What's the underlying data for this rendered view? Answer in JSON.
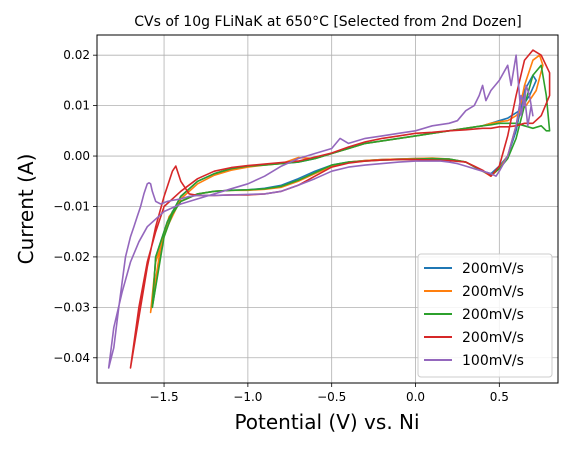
{
  "chart_data": {
    "type": "line",
    "title": "CVs of 10g FLiNaK at 650°C [Selected from 2nd Dozen]",
    "xlabel": "Potential (V) vs. Ni",
    "ylabel": "Current (A)",
    "xlim": [
      -1.9,
      0.85
    ],
    "ylim": [
      -0.045,
      0.024
    ],
    "xticks": [
      -1.5,
      -1.0,
      -0.5,
      0.0,
      0.5
    ],
    "xtick_labels": [
      "−1.5",
      "−1.0",
      "−0.5",
      "0.0",
      "0.5"
    ],
    "yticks": [
      -0.04,
      -0.03,
      -0.02,
      -0.01,
      0.0,
      0.01,
      0.02
    ],
    "ytick_labels": [
      "−0.04",
      "−0.03",
      "−0.02",
      "−0.01",
      "0.00",
      "0.01",
      "0.02"
    ],
    "grid": true,
    "legend_position": "lower-right",
    "series": [
      {
        "name": "200mV/s",
        "color": "#1f77b4",
        "x": [
          -1.57,
          -1.5,
          -1.45,
          -1.4,
          -1.3,
          -1.2,
          -1.1,
          -1.0,
          -0.9,
          -0.8,
          -0.7,
          -0.6,
          -0.5,
          -0.4,
          -0.3,
          -0.2,
          -0.1,
          0.0,
          0.1,
          0.2,
          0.3,
          0.4,
          0.45,
          0.5,
          0.55,
          0.6,
          0.65,
          0.7,
          0.72,
          0.68,
          0.62,
          0.55,
          0.5,
          0.45,
          0.4,
          0.3,
          0.2,
          0.1,
          0.0,
          -0.1,
          -0.2,
          -0.3,
          -0.4,
          -0.5,
          -0.6,
          -0.7,
          -0.8,
          -0.9,
          -1.0,
          -1.1,
          -1.2,
          -1.3,
          -1.4,
          -1.48,
          -1.55,
          -1.57
        ],
        "y": [
          -0.03,
          -0.015,
          -0.011,
          -0.009,
          -0.0075,
          -0.007,
          -0.0068,
          -0.0067,
          -0.0064,
          -0.0058,
          -0.0045,
          -0.003,
          -0.0018,
          -0.0012,
          -0.0009,
          -0.0007,
          -0.0006,
          -0.0005,
          -0.0005,
          -0.0006,
          -0.0012,
          -0.003,
          -0.0035,
          -0.002,
          0.0,
          0.005,
          0.013,
          0.016,
          0.015,
          0.012,
          0.009,
          0.0075,
          0.007,
          0.0065,
          0.006,
          0.0055,
          0.005,
          0.0045,
          0.004,
          0.0035,
          0.003,
          0.0025,
          0.0015,
          0.0005,
          -0.0005,
          -0.0012,
          -0.0015,
          -0.0017,
          -0.002,
          -0.0025,
          -0.0035,
          -0.005,
          -0.008,
          -0.013,
          -0.02,
          -0.03
        ]
      },
      {
        "name": "200mV/s",
        "color": "#ff7f0e",
        "x": [
          -1.58,
          -1.52,
          -1.47,
          -1.4,
          -1.3,
          -1.2,
          -1.1,
          -1.0,
          -0.9,
          -0.8,
          -0.7,
          -0.6,
          -0.5,
          -0.4,
          -0.3,
          -0.2,
          -0.1,
          0.0,
          0.1,
          0.2,
          0.3,
          0.4,
          0.45,
          0.5,
          0.55,
          0.6,
          0.65,
          0.7,
          0.74,
          0.76,
          0.72,
          0.66,
          0.6,
          0.55,
          0.5,
          0.45,
          0.4,
          0.3,
          0.2,
          0.1,
          0.0,
          -0.1,
          -0.2,
          -0.3,
          -0.4,
          -0.5,
          -0.6,
          -0.7,
          -0.8,
          -0.9,
          -1.0,
          -1.1,
          -1.2,
          -1.3,
          -1.4,
          -1.48,
          -1.55,
          -1.58
        ],
        "y": [
          -0.031,
          -0.018,
          -0.012,
          -0.009,
          -0.0075,
          -0.007,
          -0.0068,
          -0.0068,
          -0.0066,
          -0.0062,
          -0.005,
          -0.0035,
          -0.002,
          -0.0012,
          -0.0009,
          -0.0007,
          -0.0006,
          -0.0005,
          -0.0004,
          -0.0006,
          -0.0012,
          -0.003,
          -0.004,
          -0.0025,
          0.0,
          0.006,
          0.014,
          0.019,
          0.02,
          0.018,
          0.013,
          0.01,
          0.008,
          0.007,
          0.0068,
          0.0065,
          0.006,
          0.0055,
          0.005,
          0.0045,
          0.004,
          0.0035,
          0.003,
          0.0025,
          0.0015,
          0.0005,
          -0.0005,
          -0.0003,
          -0.0015,
          -0.0018,
          -0.0022,
          -0.0028,
          -0.0038,
          -0.0055,
          -0.0085,
          -0.014,
          -0.021,
          -0.031
        ]
      },
      {
        "name": "200mV/s",
        "color": "#2ca02c",
        "x": [
          -1.57,
          -1.5,
          -1.45,
          -1.4,
          -1.3,
          -1.2,
          -1.1,
          -1.0,
          -0.9,
          -0.8,
          -0.7,
          -0.6,
          -0.5,
          -0.4,
          -0.3,
          -0.2,
          -0.1,
          0.0,
          0.1,
          0.2,
          0.3,
          0.4,
          0.45,
          0.5,
          0.55,
          0.6,
          0.65,
          0.7,
          0.75,
          0.78,
          0.8,
          0.78,
          0.75,
          0.7,
          0.65,
          0.6,
          0.55,
          0.5,
          0.45,
          0.4,
          0.3,
          0.2,
          0.1,
          0.0,
          -0.1,
          -0.2,
          -0.3,
          -0.4,
          -0.5,
          -0.6,
          -0.7,
          -0.8,
          -0.9,
          -1.0,
          -1.1,
          -1.2,
          -1.3,
          -1.4,
          -1.48,
          -1.55,
          -1.57
        ],
        "y": [
          -0.03,
          -0.016,
          -0.0115,
          -0.009,
          -0.0075,
          -0.007,
          -0.0068,
          -0.0067,
          -0.0065,
          -0.006,
          -0.0048,
          -0.0033,
          -0.0018,
          -0.0012,
          -0.001,
          -0.0008,
          -0.0007,
          -0.0006,
          -0.0005,
          -0.0006,
          -0.0012,
          -0.003,
          -0.0038,
          -0.0025,
          -0.0005,
          0.0035,
          0.01,
          0.016,
          0.018,
          0.012,
          0.005,
          0.005,
          0.006,
          0.0055,
          0.006,
          0.0065,
          0.0065,
          0.0065,
          0.0062,
          0.006,
          0.0055,
          0.005,
          0.0045,
          0.004,
          0.0035,
          0.003,
          0.0025,
          0.0015,
          0.0005,
          -0.0005,
          -0.0012,
          -0.0015,
          -0.0018,
          -0.002,
          -0.0025,
          -0.0035,
          -0.005,
          -0.008,
          -0.013,
          -0.02,
          -0.03
        ]
      },
      {
        "name": "200mV/s",
        "color": "#d62728",
        "x": [
          -1.7,
          -1.65,
          -1.6,
          -1.55,
          -1.5,
          -1.45,
          -1.43,
          -1.4,
          -1.35,
          -1.3,
          -1.2,
          -1.1,
          -1.0,
          -0.9,
          -0.8,
          -0.7,
          -0.6,
          -0.5,
          -0.4,
          -0.3,
          -0.2,
          -0.1,
          0.0,
          0.1,
          0.2,
          0.3,
          0.35,
          0.4,
          0.45,
          0.5,
          0.55,
          0.6,
          0.65,
          0.7,
          0.75,
          0.8,
          0.8,
          0.75,
          0.7,
          0.65,
          0.6,
          0.55,
          0.5,
          0.45,
          0.4,
          0.3,
          0.2,
          0.1,
          0.0,
          -0.1,
          -0.2,
          -0.3,
          -0.4,
          -0.5,
          -0.6,
          -0.7,
          -0.8,
          -0.9,
          -1.0,
          -1.1,
          -1.2,
          -1.3,
          -1.4,
          -1.5,
          -1.55,
          -1.6,
          -1.65,
          -1.7
        ],
        "y": [
          -0.042,
          -0.032,
          -0.022,
          -0.014,
          -0.008,
          -0.003,
          -0.002,
          -0.005,
          -0.0075,
          -0.0078,
          -0.0078,
          -0.0077,
          -0.0077,
          -0.0075,
          -0.007,
          -0.0058,
          -0.004,
          -0.0022,
          -0.0014,
          -0.001,
          -0.0008,
          -0.0007,
          -0.0007,
          -0.0008,
          -0.0009,
          -0.0012,
          -0.002,
          -0.0028,
          -0.004,
          -0.002,
          0.004,
          0.012,
          0.019,
          0.021,
          0.02,
          0.0165,
          0.012,
          0.008,
          0.0065,
          0.0065,
          0.006,
          0.0058,
          0.0058,
          0.0055,
          0.0055,
          0.0052,
          0.005,
          0.0047,
          0.0045,
          0.004,
          0.0035,
          0.0028,
          0.0018,
          0.0006,
          -0.0002,
          -0.001,
          -0.0013,
          -0.0016,
          -0.0019,
          -0.0023,
          -0.003,
          -0.0045,
          -0.007,
          -0.01,
          -0.015,
          -0.021,
          -0.03,
          -0.042
        ]
      },
      {
        "name": "100mV/s",
        "color": "#9467bd",
        "x": [
          -1.83,
          -1.8,
          -1.77,
          -1.73,
          -1.7,
          -1.68,
          -1.66,
          -1.64,
          -1.62,
          -1.6,
          -1.59,
          -1.58,
          -1.57,
          -1.56,
          -1.55,
          -1.52,
          -1.48,
          -1.45,
          -1.4,
          -1.35,
          -1.3,
          -1.2,
          -1.1,
          -1.0,
          -0.9,
          -0.8,
          -0.7,
          -0.6,
          -0.5,
          -0.4,
          -0.3,
          -0.2,
          -0.1,
          0.0,
          0.05,
          0.1,
          0.15,
          0.2,
          0.25,
          0.3,
          0.35,
          0.4,
          0.45,
          0.48,
          0.5,
          0.55,
          0.6,
          0.63,
          0.65,
          0.66,
          0.68,
          0.7,
          0.69,
          0.67,
          0.65,
          0.63,
          0.6,
          0.57,
          0.55,
          0.5,
          0.45,
          0.42,
          0.4,
          0.38,
          0.35,
          0.3,
          0.25,
          0.2,
          0.1,
          0.0,
          -0.1,
          -0.2,
          -0.3,
          -0.4,
          -0.45,
          -0.5,
          -0.6,
          -0.7,
          -0.8,
          -0.9,
          -1.0,
          -1.1,
          -1.2,
          -1.3,
          -1.4,
          -1.5,
          -1.6,
          -1.65,
          -1.7,
          -1.75,
          -1.8,
          -1.83
        ],
        "y": [
          -0.042,
          -0.038,
          -0.03,
          -0.02,
          -0.016,
          -0.014,
          -0.012,
          -0.01,
          -0.0075,
          -0.0055,
          -0.0053,
          -0.0055,
          -0.007,
          -0.008,
          -0.009,
          -0.0095,
          -0.009,
          -0.0088,
          -0.0085,
          -0.008,
          -0.0078,
          -0.0078,
          -0.0077,
          -0.0076,
          -0.0075,
          -0.007,
          -0.0058,
          -0.0045,
          -0.003,
          -0.0022,
          -0.0018,
          -0.0015,
          -0.0012,
          -0.001,
          -0.001,
          -0.001,
          -0.001,
          -0.0012,
          -0.0015,
          -0.002,
          -0.0025,
          -0.003,
          -0.0035,
          -0.004,
          -0.003,
          0.0,
          0.006,
          0.012,
          0.01,
          0.014,
          0.012,
          0.008,
          0.01,
          0.006,
          0.012,
          0.008,
          0.02,
          0.014,
          0.018,
          0.015,
          0.013,
          0.011,
          0.014,
          0.012,
          0.01,
          0.009,
          0.007,
          0.0065,
          0.006,
          0.005,
          0.0045,
          0.004,
          0.0035,
          0.0025,
          0.0035,
          0.0015,
          0.0005,
          -0.0005,
          -0.002,
          -0.004,
          -0.0055,
          -0.0065,
          -0.0075,
          -0.0085,
          -0.0095,
          -0.011,
          -0.014,
          -0.017,
          -0.021,
          -0.027,
          -0.034,
          -0.042
        ]
      }
    ]
  }
}
